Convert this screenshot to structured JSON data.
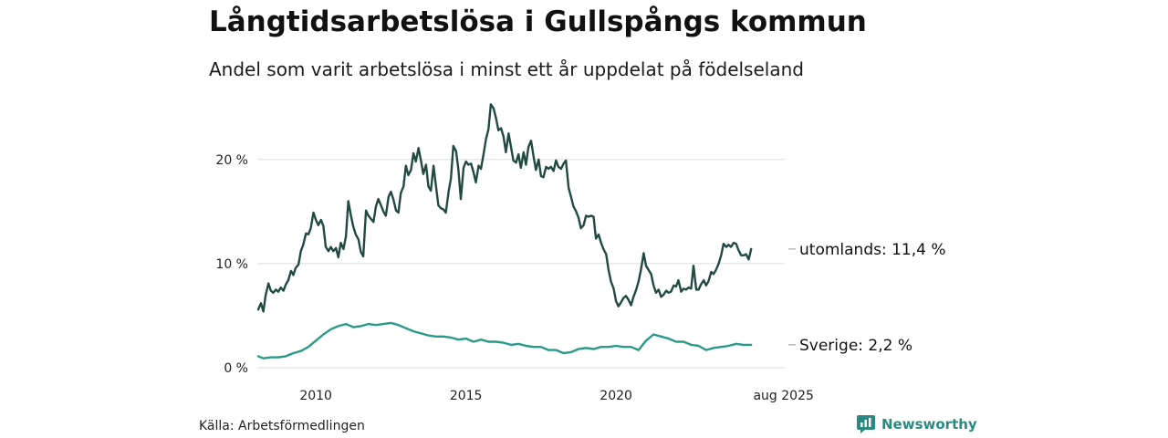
{
  "chart_data": {
    "type": "line",
    "title": "Långtidsarbetslösa i Gullspångs kommun",
    "subtitle": "Andel som varit arbetslösa i minst ett år uppdelat på födelseland",
    "source": "Källa: Arbetsförmedlingen",
    "brand": "Newsworthy",
    "xlim": [
      2008.08,
      2025.62
    ],
    "ylim": [
      0,
      25.5
    ],
    "grid": true,
    "y_ticks": [
      {
        "value": 0,
        "label": "0 %"
      },
      {
        "value": 10,
        "label": "10 %"
      },
      {
        "value": 20,
        "label": "20 %"
      }
    ],
    "x_ticks": [
      {
        "value": 2010,
        "label": "2010"
      },
      {
        "value": 2015,
        "label": "2015"
      },
      {
        "value": 2020,
        "label": "2020"
      },
      {
        "value": 2025.58,
        "label": "aug 2025"
      }
    ],
    "series": [
      {
        "name": "utomlands",
        "end_label": "utomlands: 11,4 %",
        "color": "#234a42",
        "points": [
          [
            2008.08,
            5.6
          ],
          [
            2008.17,
            6.2
          ],
          [
            2008.25,
            5.4
          ],
          [
            2008.33,
            7.0
          ],
          [
            2008.42,
            8.1
          ],
          [
            2008.5,
            7.4
          ],
          [
            2008.58,
            7.2
          ],
          [
            2008.67,
            7.5
          ],
          [
            2008.75,
            7.3
          ],
          [
            2008.83,
            7.7
          ],
          [
            2008.92,
            7.4
          ],
          [
            2009.0,
            8.0
          ],
          [
            2009.08,
            8.4
          ],
          [
            2009.17,
            9.3
          ],
          [
            2009.25,
            8.9
          ],
          [
            2009.33,
            9.6
          ],
          [
            2009.42,
            9.9
          ],
          [
            2009.5,
            11.2
          ],
          [
            2009.58,
            11.8
          ],
          [
            2009.67,
            12.9
          ],
          [
            2009.75,
            12.8
          ],
          [
            2009.83,
            13.4
          ],
          [
            2009.92,
            14.9
          ],
          [
            2010.0,
            14.2
          ],
          [
            2010.08,
            13.7
          ],
          [
            2010.17,
            14.2
          ],
          [
            2010.25,
            13.6
          ],
          [
            2010.33,
            11.6
          ],
          [
            2010.42,
            11.2
          ],
          [
            2010.5,
            11.6
          ],
          [
            2010.58,
            11.2
          ],
          [
            2010.67,
            11.5
          ],
          [
            2010.75,
            10.6
          ],
          [
            2010.83,
            12.0
          ],
          [
            2010.92,
            11.4
          ],
          [
            2011.0,
            12.6
          ],
          [
            2011.08,
            16.0
          ],
          [
            2011.17,
            14.6
          ],
          [
            2011.25,
            13.5
          ],
          [
            2011.33,
            12.8
          ],
          [
            2011.42,
            12.3
          ],
          [
            2011.5,
            11.1
          ],
          [
            2011.58,
            10.7
          ],
          [
            2011.67,
            15.1
          ],
          [
            2011.75,
            14.6
          ],
          [
            2011.83,
            14.3
          ],
          [
            2011.92,
            14.0
          ],
          [
            2012.0,
            15.5
          ],
          [
            2012.08,
            16.2
          ],
          [
            2012.17,
            15.6
          ],
          [
            2012.25,
            15.0
          ],
          [
            2012.33,
            14.6
          ],
          [
            2012.42,
            16.4
          ],
          [
            2012.5,
            16.9
          ],
          [
            2012.58,
            16.2
          ],
          [
            2012.67,
            15.1
          ],
          [
            2012.75,
            14.9
          ],
          [
            2012.83,
            16.8
          ],
          [
            2012.92,
            17.4
          ],
          [
            2013.0,
            19.4
          ],
          [
            2013.08,
            18.5
          ],
          [
            2013.17,
            19.0
          ],
          [
            2013.25,
            20.6
          ],
          [
            2013.33,
            19.8
          ],
          [
            2013.42,
            21.1
          ],
          [
            2013.5,
            19.9
          ],
          [
            2013.58,
            18.6
          ],
          [
            2013.67,
            19.5
          ],
          [
            2013.75,
            17.4
          ],
          [
            2013.83,
            17.0
          ],
          [
            2013.92,
            19.4
          ],
          [
            2014.0,
            17.5
          ],
          [
            2014.08,
            15.6
          ],
          [
            2014.17,
            15.3
          ],
          [
            2014.25,
            15.2
          ],
          [
            2014.33,
            14.9
          ],
          [
            2014.42,
            16.9
          ],
          [
            2014.5,
            18.2
          ],
          [
            2014.58,
            21.3
          ],
          [
            2014.67,
            20.8
          ],
          [
            2014.75,
            19.0
          ],
          [
            2014.83,
            16.2
          ],
          [
            2014.92,
            19.2
          ],
          [
            2015.0,
            19.8
          ],
          [
            2015.08,
            19.5
          ],
          [
            2015.17,
            19.6
          ],
          [
            2015.25,
            18.8
          ],
          [
            2015.33,
            17.8
          ],
          [
            2015.42,
            19.4
          ],
          [
            2015.5,
            19.1
          ],
          [
            2015.58,
            20.4
          ],
          [
            2015.67,
            22.0
          ],
          [
            2015.75,
            22.9
          ],
          [
            2015.83,
            25.3
          ],
          [
            2015.92,
            24.9
          ],
          [
            2016.0,
            24.0
          ],
          [
            2016.08,
            22.8
          ],
          [
            2016.17,
            23.0
          ],
          [
            2016.25,
            22.2
          ],
          [
            2016.33,
            20.7
          ],
          [
            2016.42,
            22.5
          ],
          [
            2016.5,
            21.2
          ],
          [
            2016.58,
            19.9
          ],
          [
            2016.67,
            19.7
          ],
          [
            2016.75,
            20.5
          ],
          [
            2016.83,
            19.2
          ],
          [
            2016.92,
            20.7
          ],
          [
            2017.0,
            19.5
          ],
          [
            2017.08,
            21.2
          ],
          [
            2017.17,
            21.8
          ],
          [
            2017.25,
            20.3
          ],
          [
            2017.33,
            19.0
          ],
          [
            2017.42,
            20.0
          ],
          [
            2017.5,
            18.4
          ],
          [
            2017.58,
            18.3
          ],
          [
            2017.67,
            19.3
          ],
          [
            2017.75,
            19.1
          ],
          [
            2017.83,
            19.3
          ],
          [
            2017.92,
            18.9
          ],
          [
            2018.0,
            19.9
          ],
          [
            2018.08,
            19.3
          ],
          [
            2018.17,
            19.1
          ],
          [
            2018.25,
            19.6
          ],
          [
            2018.33,
            19.9
          ],
          [
            2018.42,
            17.3
          ],
          [
            2018.5,
            16.4
          ],
          [
            2018.58,
            15.5
          ],
          [
            2018.67,
            15.0
          ],
          [
            2018.75,
            14.4
          ],
          [
            2018.83,
            13.4
          ],
          [
            2018.92,
            13.7
          ],
          [
            2019.0,
            14.6
          ],
          [
            2019.08,
            14.5
          ],
          [
            2019.17,
            14.6
          ],
          [
            2019.25,
            14.5
          ],
          [
            2019.33,
            12.4
          ],
          [
            2019.42,
            12.8
          ],
          [
            2019.5,
            12.0
          ],
          [
            2019.58,
            11.4
          ],
          [
            2019.67,
            10.9
          ],
          [
            2019.75,
            9.4
          ],
          [
            2019.83,
            8.3
          ],
          [
            2019.92,
            7.6
          ],
          [
            2020.0,
            6.4
          ],
          [
            2020.08,
            5.9
          ],
          [
            2020.17,
            6.3
          ],
          [
            2020.25,
            6.7
          ],
          [
            2020.33,
            6.9
          ],
          [
            2020.42,
            6.5
          ],
          [
            2020.5,
            6.0
          ],
          [
            2020.58,
            6.8
          ],
          [
            2020.67,
            7.5
          ],
          [
            2020.75,
            8.3
          ],
          [
            2020.83,
            9.4
          ],
          [
            2020.92,
            11.0
          ],
          [
            2021.0,
            9.8
          ],
          [
            2021.08,
            9.4
          ],
          [
            2021.17,
            9.0
          ],
          [
            2021.25,
            7.9
          ],
          [
            2021.33,
            7.2
          ],
          [
            2021.42,
            7.5
          ],
          [
            2021.5,
            6.8
          ],
          [
            2021.58,
            7.0
          ],
          [
            2021.67,
            7.4
          ],
          [
            2021.75,
            7.2
          ],
          [
            2021.83,
            7.3
          ],
          [
            2021.92,
            7.9
          ],
          [
            2022.0,
            7.8
          ],
          [
            2022.08,
            8.4
          ],
          [
            2022.17,
            7.3
          ],
          [
            2022.25,
            7.6
          ],
          [
            2022.33,
            7.5
          ],
          [
            2022.42,
            7.7
          ],
          [
            2022.5,
            7.6
          ],
          [
            2022.58,
            9.8
          ],
          [
            2022.67,
            7.5
          ],
          [
            2022.75,
            7.5
          ],
          [
            2022.83,
            8.0
          ],
          [
            2022.92,
            8.4
          ],
          [
            2023.0,
            7.9
          ],
          [
            2023.08,
            8.3
          ],
          [
            2023.17,
            9.2
          ],
          [
            2023.25,
            9.0
          ],
          [
            2023.33,
            9.4
          ],
          [
            2023.42,
            10.0
          ],
          [
            2023.5,
            10.8
          ],
          [
            2023.58,
            11.9
          ],
          [
            2023.67,
            11.6
          ],
          [
            2023.75,
            11.8
          ],
          [
            2023.83,
            11.6
          ],
          [
            2023.92,
            12.0
          ],
          [
            2024.0,
            11.9
          ],
          [
            2024.08,
            11.3
          ],
          [
            2024.17,
            10.8
          ],
          [
            2024.25,
            10.8
          ],
          [
            2024.33,
            10.9
          ],
          [
            2024.42,
            10.4
          ],
          [
            2024.5,
            11.4
          ]
        ]
      },
      {
        "name": "Sverige",
        "end_label": "Sverige:  2,2 %",
        "color": "#2a9a88",
        "points": [
          [
            2008.08,
            1.1
          ],
          [
            2008.25,
            0.9
          ],
          [
            2008.5,
            1.0
          ],
          [
            2008.75,
            1.0
          ],
          [
            2009.0,
            1.1
          ],
          [
            2009.25,
            1.4
          ],
          [
            2009.5,
            1.6
          ],
          [
            2009.75,
            2.0
          ],
          [
            2010.0,
            2.6
          ],
          [
            2010.25,
            3.2
          ],
          [
            2010.5,
            3.7
          ],
          [
            2010.75,
            4.0
          ],
          [
            2011.0,
            4.2
          ],
          [
            2011.25,
            3.9
          ],
          [
            2011.5,
            4.0
          ],
          [
            2011.75,
            4.2
          ],
          [
            2012.0,
            4.1
          ],
          [
            2012.25,
            4.2
          ],
          [
            2012.5,
            4.3
          ],
          [
            2012.75,
            4.1
          ],
          [
            2013.0,
            3.8
          ],
          [
            2013.25,
            3.5
          ],
          [
            2013.5,
            3.3
          ],
          [
            2013.75,
            3.1
          ],
          [
            2014.0,
            3.0
          ],
          [
            2014.25,
            3.0
          ],
          [
            2014.5,
            2.9
          ],
          [
            2014.75,
            2.7
          ],
          [
            2015.0,
            2.8
          ],
          [
            2015.25,
            2.5
          ],
          [
            2015.5,
            2.7
          ],
          [
            2015.75,
            2.5
          ],
          [
            2016.0,
            2.5
          ],
          [
            2016.25,
            2.4
          ],
          [
            2016.5,
            2.2
          ],
          [
            2016.75,
            2.3
          ],
          [
            2017.0,
            2.1
          ],
          [
            2017.25,
            2.0
          ],
          [
            2017.5,
            2.0
          ],
          [
            2017.75,
            1.7
          ],
          [
            2018.0,
            1.7
          ],
          [
            2018.25,
            1.4
          ],
          [
            2018.5,
            1.5
          ],
          [
            2018.75,
            1.8
          ],
          [
            2019.0,
            1.9
          ],
          [
            2019.25,
            1.8
          ],
          [
            2019.5,
            2.0
          ],
          [
            2019.75,
            2.0
          ],
          [
            2020.0,
            2.1
          ],
          [
            2020.25,
            2.0
          ],
          [
            2020.5,
            2.0
          ],
          [
            2020.75,
            1.7
          ],
          [
            2021.0,
            2.6
          ],
          [
            2021.25,
            3.2
          ],
          [
            2021.5,
            3.0
          ],
          [
            2021.75,
            2.8
          ],
          [
            2022.0,
            2.5
          ],
          [
            2022.25,
            2.5
          ],
          [
            2022.5,
            2.2
          ],
          [
            2022.75,
            2.1
          ],
          [
            2023.0,
            1.7
          ],
          [
            2023.25,
            1.9
          ],
          [
            2023.5,
            2.0
          ],
          [
            2023.75,
            2.1
          ],
          [
            2024.0,
            2.3
          ],
          [
            2024.25,
            2.2
          ],
          [
            2024.5,
            2.2
          ]
        ]
      }
    ]
  }
}
